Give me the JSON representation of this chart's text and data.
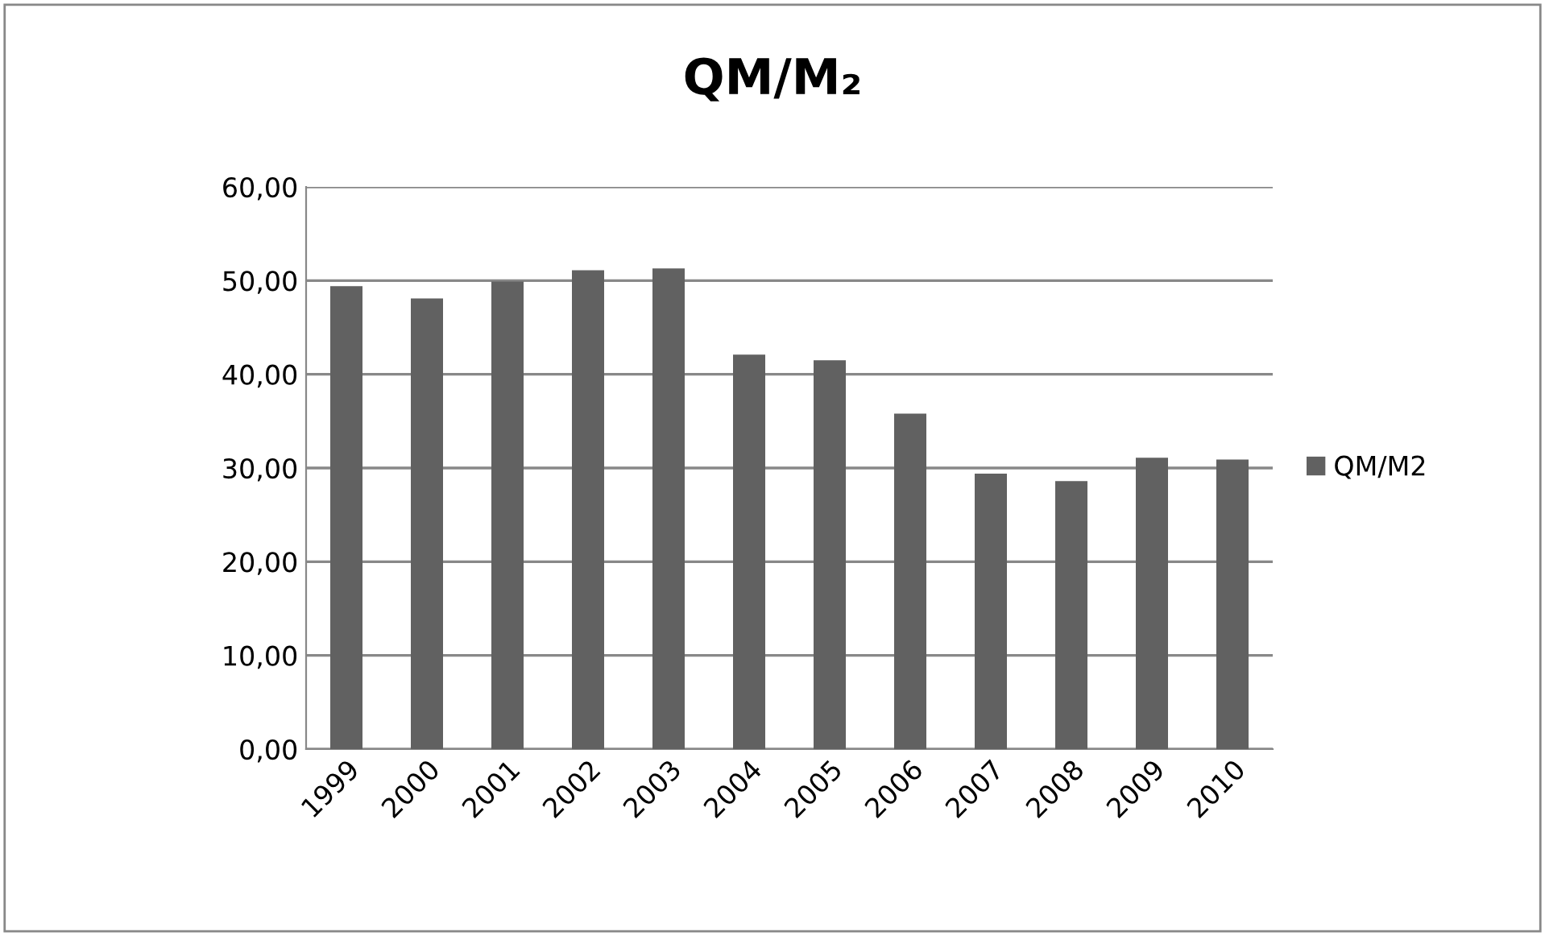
{
  "chart_data": {
    "type": "bar",
    "title": "QM/M₂",
    "categories": [
      "1999",
      "2000",
      "2001",
      "2002",
      "2003",
      "2004",
      "2005",
      "2006",
      "2007",
      "2008",
      "2009",
      "2010"
    ],
    "series": [
      {
        "name": "QM/M2",
        "color": "#616161",
        "values": [
          49.4,
          48.1,
          49.9,
          51.1,
          51.3,
          42.1,
          41.5,
          35.8,
          29.4,
          28.6,
          31.1,
          30.9
        ]
      }
    ],
    "ylim": [
      0,
      60
    ],
    "yticks": [
      {
        "value": 0,
        "label": "0,00"
      },
      {
        "value": 10,
        "label": "10,00"
      },
      {
        "value": 20,
        "label": "20,00"
      },
      {
        "value": 30,
        "label": "30,00"
      },
      {
        "value": 40,
        "label": "40,00"
      },
      {
        "value": 50,
        "label": "50,00"
      },
      {
        "value": 60,
        "label": "60,00"
      }
    ],
    "grid": "y",
    "legend": "right"
  }
}
